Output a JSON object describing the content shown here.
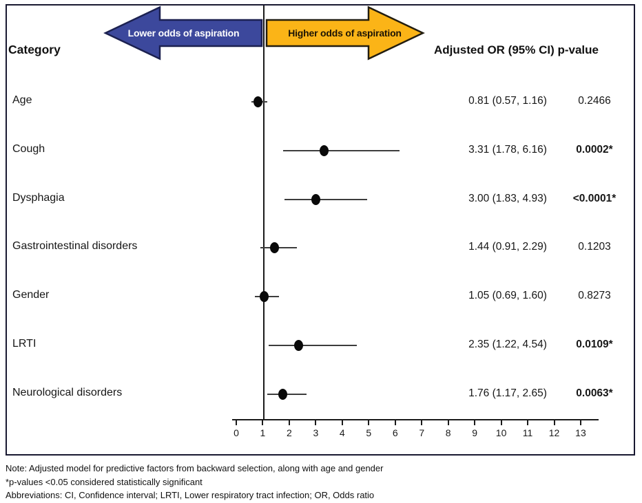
{
  "figure": {
    "category_header": "Category",
    "or_header": "Adjusted OR (95% CI) p-value",
    "arrows": {
      "left": {
        "label": "Lower odds of aspiration",
        "fill": "#3c489c",
        "stroke": "#1c2150",
        "text_color": "#ffffff"
      },
      "right": {
        "label": "Higher odds of aspiration",
        "fill": "#fbb417",
        "stroke": "#221d10",
        "text_color": "#1c1405"
      }
    }
  },
  "chart_data": {
    "type": "scatter",
    "subtype": "forest_plot",
    "title": "",
    "xlabel": "",
    "ylabel": "",
    "x_axis": {
      "min": 0,
      "max": 13,
      "ticks": [
        0,
        1,
        2,
        3,
        4,
        5,
        6,
        7,
        8,
        9,
        10,
        11,
        12,
        13
      ]
    },
    "reference_line_x": 1,
    "grid": false,
    "legend": "none",
    "rows": [
      {
        "category": "Age",
        "or": 0.81,
        "ci_low": 0.57,
        "ci_high": 1.16,
        "p_value": "0.2466",
        "significant": false
      },
      {
        "category": "Cough",
        "or": 3.31,
        "ci_low": 1.78,
        "ci_high": 6.16,
        "p_value": "0.0002*",
        "significant": true
      },
      {
        "category": "Dysphagia",
        "or": 3.0,
        "ci_low": 1.83,
        "ci_high": 4.93,
        "p_value": "<0.0001*",
        "significant": true
      },
      {
        "category": "Gastrointestinal disorders",
        "or": 1.44,
        "ci_low": 0.91,
        "ci_high": 2.29,
        "p_value": "0.1203",
        "significant": false
      },
      {
        "category": "Gender",
        "or": 1.05,
        "ci_low": 0.69,
        "ci_high": 1.6,
        "p_value": "0.8273",
        "significant": false
      },
      {
        "category": "LRTI",
        "or": 2.35,
        "ci_low": 1.22,
        "ci_high": 4.54,
        "p_value": "0.0109*",
        "significant": true
      },
      {
        "category": "Neurological disorders",
        "or": 1.76,
        "ci_low": 1.17,
        "ci_high": 2.65,
        "p_value": "0.0063*",
        "significant": true
      }
    ]
  },
  "notes": {
    "line1": "Note: Adjusted model for predictive factors from backward selection, along with age and gender",
    "line2": "*p-values <0.05 considered statistically significant",
    "line3": "Abbreviations: CI, Confidence interval; LRTI, Lower respiratory tract infection; OR, Odds ratio"
  }
}
